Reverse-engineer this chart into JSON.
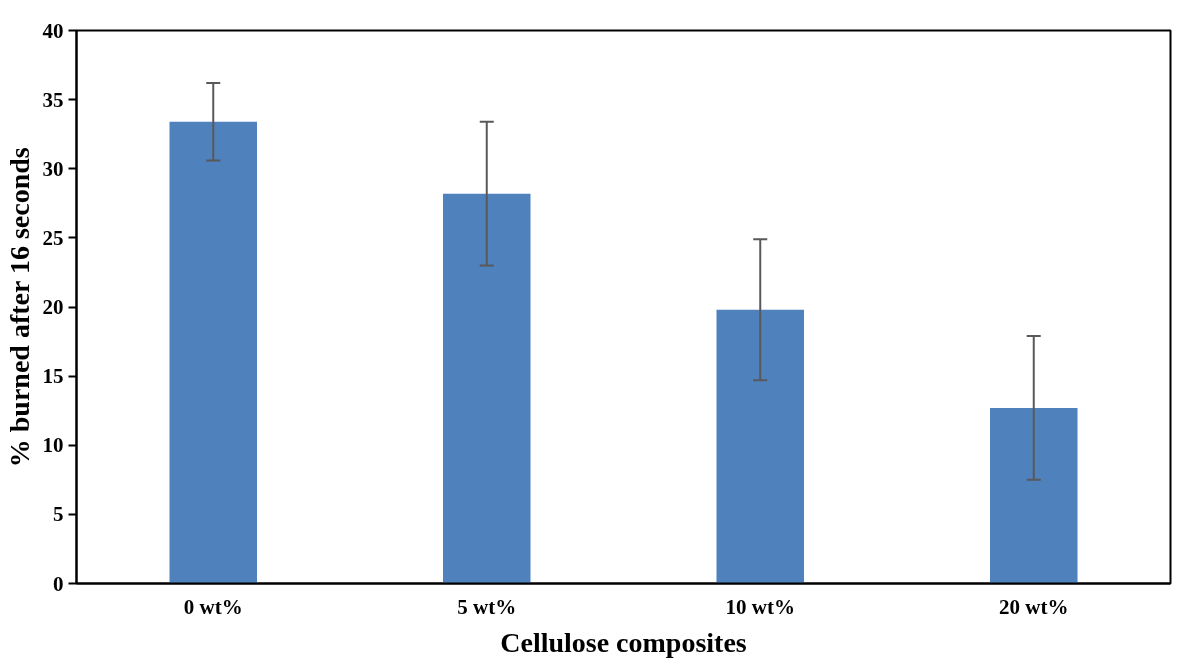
{
  "chart_data": {
    "type": "bar",
    "xlabel": "Cellulose composites",
    "ylabel": "% burned after 16 seconds",
    "categories": [
      "0 wt%",
      "5 wt%",
      "10 wt%",
      "20 wt%"
    ],
    "values": [
      33.4,
      28.2,
      19.8,
      12.7
    ],
    "errors": [
      2.8,
      5.2,
      5.1,
      5.2
    ],
    "color": "#4f81bd",
    "ylim": [
      0,
      40
    ],
    "yticks": [
      0,
      5,
      10,
      15,
      20,
      25,
      30,
      35,
      40
    ],
    "grid": false
  }
}
